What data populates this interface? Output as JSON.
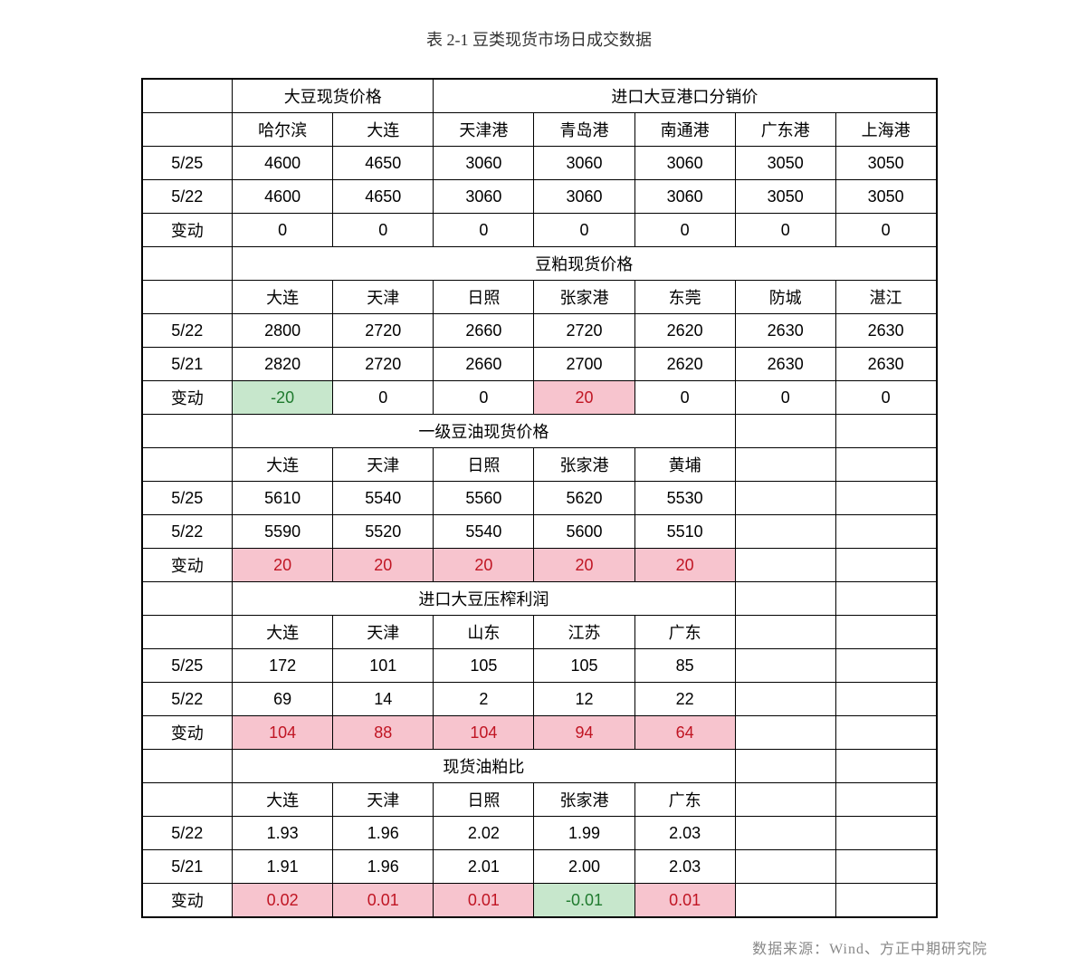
{
  "title": "表 2-1 豆类现货市场日成交数据",
  "source": "数据来源：Wind、方正中期研究院",
  "colors": {
    "pos_bg": "#f7c4ce",
    "pos_text": "#c01523",
    "neg_bg": "#c7e7cc",
    "neg_text": "#1f7a2e",
    "border": "#000000",
    "bg": "#ffffff"
  },
  "sections": [
    {
      "group_headers": [
        {
          "label": "大豆现货价格",
          "span": 2
        },
        {
          "label": "进口大豆港口分销价",
          "span": 5
        }
      ],
      "city_headers": [
        "哈尔滨",
        "大连",
        "天津港",
        "青岛港",
        "南通港",
        "广东港",
        "上海港"
      ],
      "rows": [
        {
          "label": "5/25",
          "vals": [
            "4600",
            "4650",
            "3060",
            "3060",
            "3060",
            "3050",
            "3050"
          ]
        },
        {
          "label": "5/22",
          "vals": [
            "4600",
            "4650",
            "3060",
            "3060",
            "3060",
            "3050",
            "3050"
          ]
        },
        {
          "label": "变动",
          "vals": [
            "0",
            "0",
            "0",
            "0",
            "0",
            "0",
            "0"
          ],
          "flags": [
            "",
            "",
            "",
            "",
            "",
            "",
            ""
          ]
        }
      ]
    },
    {
      "group_headers": [
        {
          "label": "豆粕现货价格",
          "span": 7
        }
      ],
      "city_headers": [
        "大连",
        "天津",
        "日照",
        "张家港",
        "东莞",
        "防城",
        "湛江"
      ],
      "rows": [
        {
          "label": "5/22",
          "vals": [
            "2800",
            "2720",
            "2660",
            "2720",
            "2620",
            "2630",
            "2630"
          ]
        },
        {
          "label": "5/21",
          "vals": [
            "2820",
            "2720",
            "2660",
            "2700",
            "2620",
            "2630",
            "2630"
          ]
        },
        {
          "label": "变动",
          "vals": [
            "-20",
            "0",
            "0",
            "20",
            "0",
            "0",
            "0"
          ],
          "flags": [
            "neg",
            "",
            "",
            "pos",
            "",
            "",
            ""
          ]
        }
      ]
    },
    {
      "group_headers": [
        {
          "label": "一级豆油现货价格",
          "span": 5
        },
        {
          "label": "",
          "span": 1
        },
        {
          "label": "",
          "span": 1
        }
      ],
      "city_headers": [
        "大连",
        "天津",
        "日照",
        "张家港",
        "黄埔",
        "",
        ""
      ],
      "rows": [
        {
          "label": "5/25",
          "vals": [
            "5610",
            "5540",
            "5560",
            "5620",
            "5530",
            "",
            ""
          ]
        },
        {
          "label": "5/22",
          "vals": [
            "5590",
            "5520",
            "5540",
            "5600",
            "5510",
            "",
            ""
          ]
        },
        {
          "label": "变动",
          "vals": [
            "20",
            "20",
            "20",
            "20",
            "20",
            "",
            ""
          ],
          "flags": [
            "pos",
            "pos",
            "pos",
            "pos",
            "pos",
            "",
            ""
          ]
        }
      ]
    },
    {
      "group_headers": [
        {
          "label": "进口大豆压榨利润",
          "span": 5
        },
        {
          "label": "",
          "span": 1
        },
        {
          "label": "",
          "span": 1
        }
      ],
      "city_headers": [
        "大连",
        "天津",
        "山东",
        "江苏",
        "广东",
        "",
        ""
      ],
      "rows": [
        {
          "label": "5/25",
          "vals": [
            "172",
            "101",
            "105",
            "105",
            "85",
            "",
            ""
          ]
        },
        {
          "label": "5/22",
          "vals": [
            "69",
            "14",
            "2",
            "12",
            "22",
            "",
            ""
          ]
        },
        {
          "label": "变动",
          "vals": [
            "104",
            "88",
            "104",
            "94",
            "64",
            "",
            ""
          ],
          "flags": [
            "pos",
            "pos",
            "pos",
            "pos",
            "pos",
            "",
            ""
          ]
        }
      ]
    },
    {
      "group_headers": [
        {
          "label": "现货油粕比",
          "span": 5
        },
        {
          "label": "",
          "span": 1
        },
        {
          "label": "",
          "span": 1
        }
      ],
      "city_headers": [
        "大连",
        "天津",
        "日照",
        "张家港",
        "广东",
        "",
        ""
      ],
      "rows": [
        {
          "label": "5/22",
          "vals": [
            "1.93",
            "1.96",
            "2.02",
            "1.99",
            "2.03",
            "",
            ""
          ]
        },
        {
          "label": "5/21",
          "vals": [
            "1.91",
            "1.96",
            "2.01",
            "2.00",
            "2.03",
            "",
            ""
          ]
        },
        {
          "label": "变动",
          "vals": [
            "0.02",
            "0.01",
            "0.01",
            "-0.01",
            "0.01",
            "",
            ""
          ],
          "flags": [
            "pos",
            "pos",
            "pos",
            "neg",
            "pos",
            "",
            ""
          ]
        }
      ]
    }
  ]
}
